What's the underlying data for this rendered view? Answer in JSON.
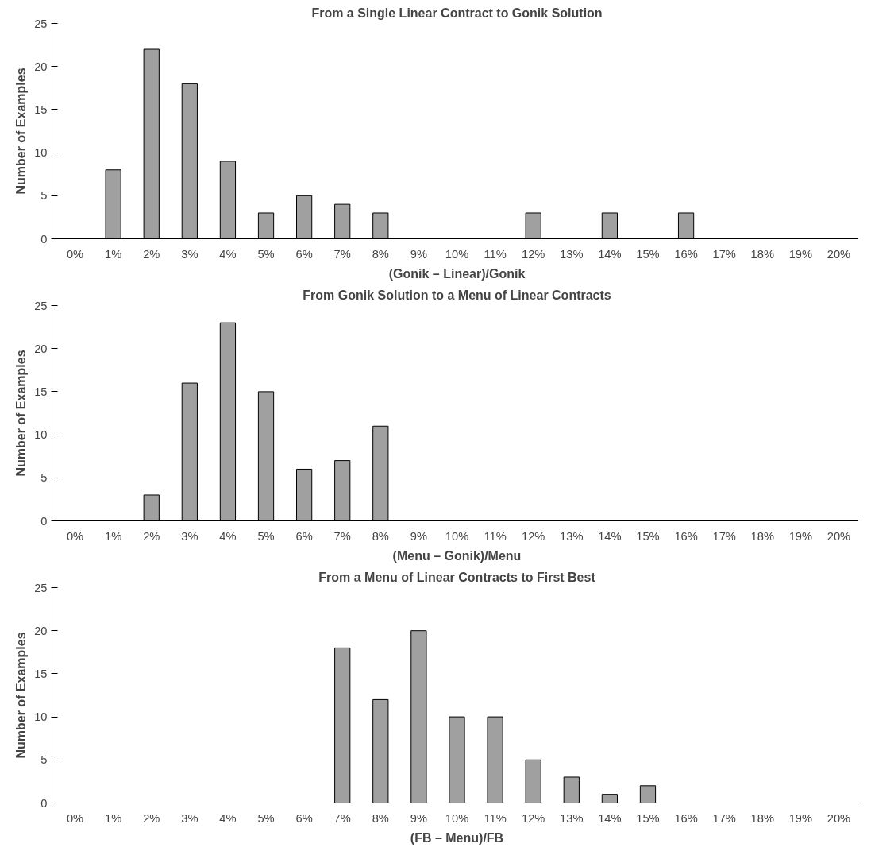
{
  "chart_data": [
    {
      "type": "bar",
      "title": "From a Single Linear Contract to Gonik Solution",
      "xlabel": "(Gonik – Linear)/Gonik",
      "ylabel": "Number of Examples",
      "categories": [
        "0%",
        "1%",
        "2%",
        "3%",
        "4%",
        "5%",
        "6%",
        "7%",
        "8%",
        "9%",
        "10%",
        "11%",
        "12%",
        "13%",
        "14%",
        "15%",
        "16%",
        "17%",
        "18%",
        "19%",
        "20%"
      ],
      "values": [
        0,
        8,
        22,
        18,
        9,
        3,
        5,
        4,
        3,
        0,
        0,
        0,
        3,
        0,
        3,
        0,
        3,
        0,
        0,
        0,
        0
      ],
      "color": "#a0a0a0",
      "ylim": [
        0,
        25
      ],
      "yticks": [
        0,
        5,
        10,
        15,
        20,
        25
      ],
      "grid": false,
      "legend": false
    },
    {
      "type": "bar",
      "title": "From Gonik Solution to a Menu of Linear Contracts",
      "xlabel": "(Menu – Gonik)/Menu",
      "ylabel": "Number of Examples",
      "categories": [
        "0%",
        "1%",
        "2%",
        "3%",
        "4%",
        "5%",
        "6%",
        "7%",
        "8%",
        "9%",
        "10%",
        "11%",
        "12%",
        "13%",
        "14%",
        "15%",
        "16%",
        "17%",
        "18%",
        "19%",
        "20%"
      ],
      "values": [
        0,
        0,
        3,
        16,
        23,
        15,
        6,
        7,
        11,
        0,
        0,
        0,
        0,
        0,
        0,
        0,
        0,
        0,
        0,
        0,
        0
      ],
      "color": "#a0a0a0",
      "ylim": [
        0,
        25
      ],
      "yticks": [
        0,
        5,
        10,
        15,
        20,
        25
      ],
      "grid": false,
      "legend": false
    },
    {
      "type": "bar",
      "title": "From a Menu of Linear Contracts to First Best",
      "xlabel": "(FB – Menu)/FB",
      "ylabel": "Number of Examples",
      "categories": [
        "0%",
        "1%",
        "2%",
        "3%",
        "4%",
        "5%",
        "6%",
        "7%",
        "8%",
        "9%",
        "10%",
        "11%",
        "12%",
        "13%",
        "14%",
        "15%",
        "16%",
        "17%",
        "18%",
        "19%",
        "20%"
      ],
      "values": [
        0,
        0,
        0,
        0,
        0,
        0,
        0,
        18,
        12,
        20,
        10,
        10,
        5,
        3,
        1,
        2,
        0,
        0,
        0,
        0,
        0
      ],
      "color": "#a0a0a0",
      "ylim": [
        0,
        25
      ],
      "yticks": [
        0,
        5,
        10,
        15,
        20,
        25
      ],
      "grid": false,
      "legend": false
    }
  ]
}
